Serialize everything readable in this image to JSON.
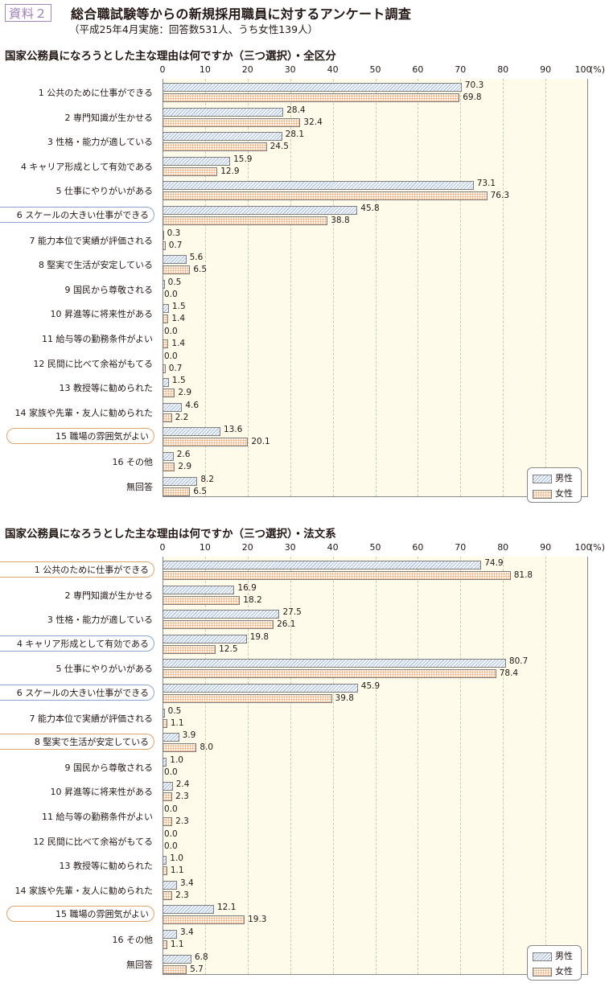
{
  "header": {
    "badge": "資料２",
    "title": "総合職試験等からの新規採用職員に対するアンケート調査",
    "subtitle": "（平成25年4月実施：回答数531人、うち女性139人）"
  },
  "axis": {
    "ticks": [
      "0",
      "10",
      "20",
      "30",
      "40",
      "50",
      "60",
      "70",
      "80",
      "90",
      "100"
    ],
    "unit": "(%)"
  },
  "legend": {
    "male": "男性",
    "female": "女性"
  },
  "colors": {
    "male_fill": "#b9c9e6",
    "female_fill": "#e9a06e",
    "plot_bg": "#fffbeb",
    "highlight_blue": "#8aa6d0",
    "highlight_orange": "#e0a46b",
    "badge": "#9b7cb5"
  },
  "chart_data": [
    {
      "type": "bar",
      "orientation": "horizontal",
      "title": "国家公務員になろうとした主な理由は何ですか（三つ選択）・全区分",
      "xlabel": "(%)",
      "xlim": [
        0,
        100
      ],
      "grid": true,
      "legend_position": "bottom-right",
      "categories": [
        "1 公共のために仕事ができる",
        "2 専門知識が生かせる",
        "3 性格・能力が適している",
        "4 キャリア形成として有効である",
        "5 仕事にやりがいがある",
        "6 スケールの大きい仕事ができる",
        "7 能力本位で実績が評価される",
        "8 堅実で生活が安定している",
        "9 国民から尊敬される",
        "10 昇進等に将来性がある",
        "11 給与等の勤務条件がよい",
        "12 民間に比べて余裕がもてる",
        "13 教授等に勧められた",
        "14 家族や先輩・友人に勧められた",
        "15 職場の雰囲気がよい",
        "16 その他",
        "無回答"
      ],
      "highlight": {
        "6 スケールの大きい仕事ができる": "blue",
        "15 職場の雰囲気がよい": "orange"
      },
      "series": [
        {
          "name": "男性",
          "values": [
            70.3,
            28.4,
            28.1,
            15.9,
            73.1,
            45.8,
            0.3,
            5.6,
            0.5,
            1.5,
            0.0,
            0.0,
            1.5,
            4.6,
            13.6,
            2.6,
            8.2
          ]
        },
        {
          "name": "女性",
          "values": [
            69.8,
            32.4,
            24.5,
            12.9,
            76.3,
            38.8,
            0.7,
            6.5,
            0.0,
            1.4,
            1.4,
            0.7,
            2.9,
            2.2,
            20.1,
            2.9,
            6.5
          ]
        }
      ]
    },
    {
      "type": "bar",
      "orientation": "horizontal",
      "title": "国家公務員になろうとした主な理由は何ですか（三つ選択）・法文系",
      "xlabel": "(%)",
      "xlim": [
        0,
        100
      ],
      "grid": true,
      "legend_position": "bottom-right",
      "categories": [
        "1 公共のために仕事ができる",
        "2 専門知識が生かせる",
        "3 性格・能力が適している",
        "4 キャリア形成として有効である",
        "5 仕事にやりがいがある",
        "6 スケールの大きい仕事ができる",
        "7 能力本位で実績が評価される",
        "8 堅実で生活が安定している",
        "9 国民から尊敬される",
        "10 昇進等に将来性がある",
        "11 給与等の勤務条件がよい",
        "12 民間に比べて余裕がもてる",
        "13 教授等に勧められた",
        "14 家族や先輩・友人に勧められた",
        "15 職場の雰囲気がよい",
        "16 その他",
        "無回答"
      ],
      "highlight": {
        "1 公共のために仕事ができる": "orange",
        "4 キャリア形成として有効である": "blue",
        "6 スケールの大きい仕事ができる": "blue",
        "8 堅実で生活が安定している": "orange",
        "15 職場の雰囲気がよい": "orange"
      },
      "series": [
        {
          "name": "男性",
          "values": [
            74.9,
            16.9,
            27.5,
            19.8,
            80.7,
            45.9,
            0.5,
            3.9,
            1.0,
            2.4,
            0.0,
            0.0,
            1.0,
            3.4,
            12.1,
            3.4,
            6.8
          ]
        },
        {
          "name": "女性",
          "values": [
            81.8,
            18.2,
            26.1,
            12.5,
            78.4,
            39.8,
            1.1,
            8.0,
            0.0,
            2.3,
            2.3,
            0.0,
            1.1,
            2.3,
            19.3,
            1.1,
            5.7
          ]
        }
      ]
    }
  ]
}
